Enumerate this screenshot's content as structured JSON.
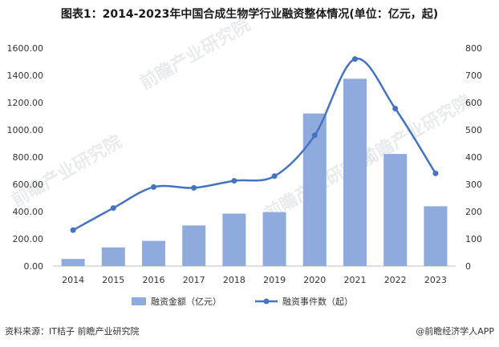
{
  "title": "图表1：2014-2023年中国合成生物学行业融资整体情况(单位：亿元，起)",
  "source": "资料来源：IT桔子 前瞻产业研究院",
  "brand": "@前瞻经济学人APP",
  "watermark": "前瞻产业研究院",
  "colors": {
    "bar": "#8FAADC",
    "line": "#4472C4"
  },
  "chart_data": {
    "type": "bar+line",
    "categories": [
      "2014",
      "2015",
      "2016",
      "2017",
      "2018",
      "2019",
      "2020",
      "2021",
      "2022",
      "2023"
    ],
    "series": [
      {
        "name": "融资金额（亿元）",
        "type": "bar",
        "axis": "left",
        "values": [
          52,
          137,
          185,
          298,
          385,
          396,
          1120,
          1375,
          823,
          439
        ]
      },
      {
        "name": "融资事件数（起）",
        "type": "line",
        "axis": "right",
        "values": [
          132,
          213,
          290,
          287,
          313,
          330,
          480,
          760,
          578,
          340
        ]
      }
    ],
    "y_left": {
      "min": 0,
      "max": 1600,
      "step": 200,
      "ticks": [
        "0.00",
        "200.00",
        "400.00",
        "600.00",
        "800.00",
        "1000.00",
        "1200.00",
        "1400.00",
        "1600.00"
      ]
    },
    "y_right": {
      "min": 0,
      "max": 800,
      "step": 100,
      "ticks": [
        "0",
        "100",
        "200",
        "300",
        "400",
        "500",
        "600",
        "700",
        "800"
      ]
    },
    "legend": [
      "融资金额（亿元）",
      "融资事件数（起）"
    ],
    "legend_position": "bottom"
  }
}
